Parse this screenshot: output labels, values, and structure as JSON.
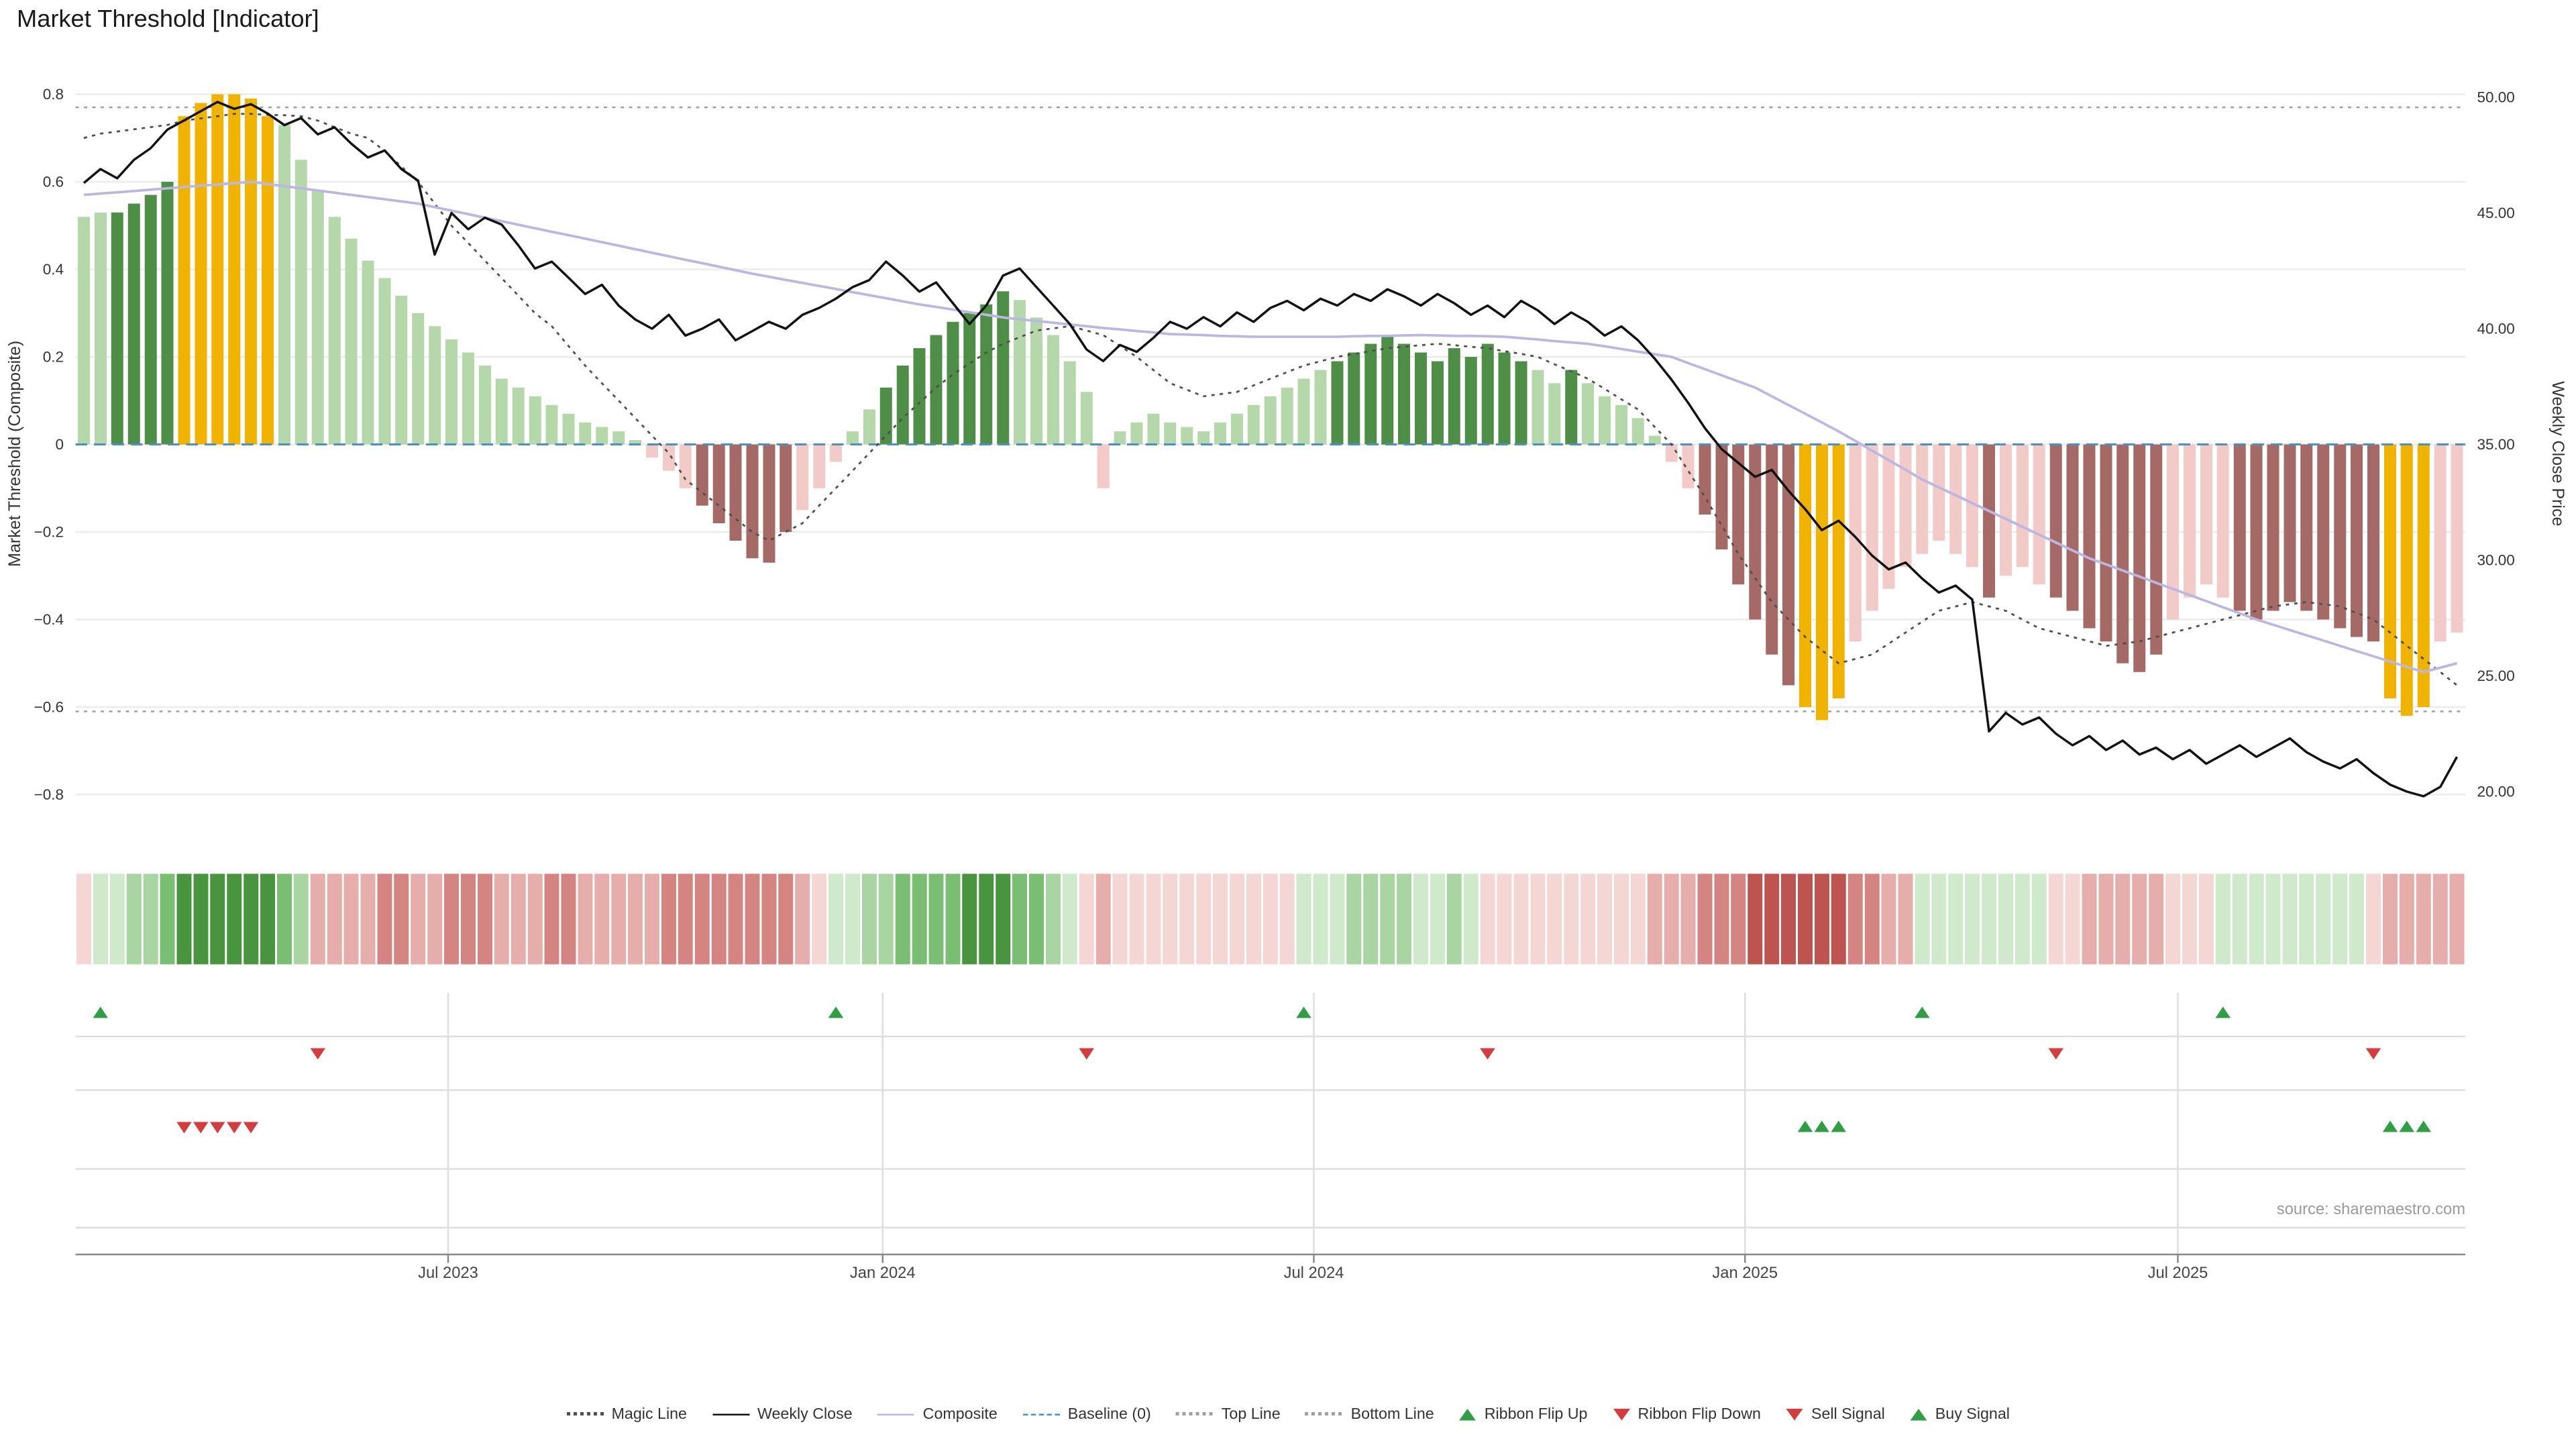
{
  "title": "Market Threshold [Indicator]",
  "source": "source: sharemaestro.com",
  "colors": {
    "bars": {
      "lg": "#b5d8ab",
      "dg": "#4e8e47",
      "gold": "#f0b400",
      "lp": "#f2cbc8",
      "mr": "#a66a66"
    },
    "ribbon": {
      "g1": "#cfe9cb",
      "g2": "#a8d5a1",
      "g3": "#7abe73",
      "g4": "#49953f",
      "r1": "#f4d7d5",
      "r2": "#e6aeab",
      "r3": "#d48481",
      "r4": "#bd5450"
    },
    "lines": {
      "magic": "#4f4f4f",
      "weekly_close": "#121212",
      "composite": "#bcb6e2",
      "baseline": "#4a90c4",
      "top_line": "#a0a0a0",
      "bottom_line": "#a0a0a0"
    },
    "signals": {
      "up": "#2f9e44",
      "down": "#d43d3d"
    },
    "grid": "#ebebeb",
    "divider": "#dedede",
    "axis": "#888888",
    "text": "#333333"
  },
  "legend": [
    {
      "label": "Magic Line",
      "marker": "dotted",
      "color": "#4f4f4f"
    },
    {
      "label": "Weekly Close",
      "marker": "solid",
      "color": "#121212"
    },
    {
      "label": "Composite",
      "marker": "solid",
      "color": "#bcb6e2"
    },
    {
      "label": "Baseline (0)",
      "marker": "dashed",
      "color": "#4a90c4"
    },
    {
      "label": "Top Line",
      "marker": "dotted",
      "color": "#a0a0a0"
    },
    {
      "label": "Bottom Line",
      "marker": "dotted",
      "color": "#a0a0a0"
    },
    {
      "label": "Ribbon Flip Up",
      "marker": "triangle-up",
      "color": "#2f9e44"
    },
    {
      "label": "Ribbon Flip Down",
      "marker": "triangle-down",
      "color": "#d43d3d"
    },
    {
      "label": "Sell Signal",
      "marker": "triangle-down",
      "color": "#d43d3d"
    },
    {
      "label": "Buy Signal",
      "marker": "triangle-up",
      "color": "#2f9e44"
    }
  ],
  "chart_data": {
    "type": "combo",
    "subtype": "weekly indicator bars with price overlay, ribbon strip and signal rows",
    "n_points": 143,
    "x_ticks": [
      {
        "label": "Jul 2023",
        "week_index": 21.8
      },
      {
        "label": "Jan 2024",
        "week_index": 47.8
      },
      {
        "label": "Jul 2024",
        "week_index": 73.6
      },
      {
        "label": "Jan 2025",
        "week_index": 99.4
      },
      {
        "label": "Jul 2025",
        "week_index": 125.3
      }
    ],
    "left_axis": {
      "label": "Market Threshold (Composite)",
      "tick_labels": [
        "0.8",
        "0.6",
        "0.4",
        "0.2",
        "0",
        "−0.2",
        "−0.4",
        "−0.6",
        "−0.8"
      ],
      "tick_values": [
        0.8,
        0.6,
        0.4,
        0.2,
        0,
        -0.2,
        -0.4,
        -0.6,
        -0.8
      ],
      "range": [
        -0.94,
        0.88
      ]
    },
    "right_axis": {
      "label": "Weekly Close Price",
      "tick_labels": [
        "50.00",
        "45.00",
        "40.00",
        "35.00",
        "30.00",
        "25.00",
        "20.00"
      ],
      "tick_values": [
        50,
        45,
        40,
        35,
        30,
        25,
        20
      ]
    },
    "reference_lines": {
      "baseline": 0,
      "top_line": 0.77,
      "bottom_line": -0.61
    },
    "series": {
      "threshold_bars": {
        "type": "bar",
        "axis": "left",
        "values": [
          0.52,
          0.53,
          0.53,
          0.55,
          0.57,
          0.6,
          0.75,
          0.78,
          0.8,
          0.8,
          0.79,
          0.75,
          0.73,
          0.65,
          0.58,
          0.52,
          0.47,
          0.42,
          0.38,
          0.34,
          0.3,
          0.27,
          0.24,
          0.21,
          0.18,
          0.15,
          0.13,
          0.11,
          0.09,
          0.07,
          0.05,
          0.04,
          0.03,
          0.01,
          -0.03,
          -0.06,
          -0.1,
          -0.14,
          -0.18,
          -0.22,
          -0.26,
          -0.27,
          -0.2,
          -0.15,
          -0.1,
          -0.04,
          0.03,
          0.08,
          0.13,
          0.18,
          0.22,
          0.25,
          0.28,
          0.3,
          0.32,
          0.35,
          0.33,
          0.29,
          0.25,
          0.19,
          0.12,
          -0.1,
          0.03,
          0.05,
          0.07,
          0.05,
          0.04,
          0.03,
          0.05,
          0.07,
          0.09,
          0.11,
          0.13,
          0.15,
          0.17,
          0.19,
          0.21,
          0.23,
          0.25,
          0.23,
          0.21,
          0.19,
          0.22,
          0.2,
          0.23,
          0.21,
          0.19,
          0.17,
          0.14,
          0.17,
          0.14,
          0.11,
          0.09,
          0.06,
          0.02,
          -0.04,
          -0.1,
          -0.16,
          -0.24,
          -0.32,
          -0.4,
          -0.48,
          -0.55,
          -0.6,
          -0.63,
          -0.58,
          -0.45,
          -0.38,
          -0.33,
          -0.28,
          -0.25,
          -0.22,
          -0.25,
          -0.28,
          -0.35,
          -0.3,
          -0.28,
          -0.32,
          -0.35,
          -0.38,
          -0.42,
          -0.45,
          -0.5,
          -0.52,
          -0.48,
          -0.4,
          -0.35,
          -0.32,
          -0.35,
          -0.38,
          -0.4,
          -0.38,
          -0.36,
          -0.38,
          -0.4,
          -0.42,
          -0.44,
          -0.45,
          -0.58,
          -0.62,
          -0.6,
          -0.45,
          -0.43
        ],
        "color_runs": [
          [
            "lg",
            2
          ],
          [
            "dg",
            4
          ],
          [
            "gold",
            6
          ],
          [
            "lg",
            22
          ],
          [
            "lp",
            3
          ],
          [
            "mr",
            6
          ],
          [
            "lp",
            3
          ],
          [
            "lg",
            2
          ],
          [
            "dg",
            8
          ],
          [
            "lg",
            5
          ],
          [
            "lp",
            1
          ],
          [
            "lg",
            13
          ],
          [
            "dg",
            12
          ],
          [
            "lg",
            2
          ],
          [
            "dg",
            1
          ],
          [
            "lg",
            5
          ],
          [
            "lp",
            2
          ],
          [
            "mr",
            6
          ],
          [
            "gold",
            3
          ],
          [
            "lp",
            8
          ],
          [
            "mr",
            1
          ],
          [
            "lp",
            3
          ],
          [
            "mr",
            7
          ],
          [
            "lp",
            4
          ],
          [
            "mr",
            9
          ],
          [
            "gold",
            3
          ],
          [
            "lp",
            2
          ]
        ]
      },
      "magic_line": {
        "type": "line",
        "style": "dotted",
        "axis": "left",
        "values": [
          0.7,
          0.71,
          0.715,
          0.72,
          0.725,
          0.73,
          0.74,
          0.745,
          0.75,
          0.755,
          0.755,
          0.753,
          0.752,
          0.75,
          0.74,
          0.725,
          0.71,
          0.7,
          0.67,
          0.635,
          0.6,
          0.55,
          0.5,
          0.46,
          0.42,
          0.38,
          0.34,
          0.3,
          0.27,
          0.225,
          0.18,
          0.14,
          0.1,
          0.06,
          0.02,
          -0.02,
          -0.08,
          -0.11,
          -0.14,
          -0.17,
          -0.2,
          -0.22,
          -0.2,
          -0.18,
          -0.14,
          -0.1,
          -0.06,
          -0.02,
          0.02,
          0.06,
          0.095,
          0.13,
          0.16,
          0.185,
          0.21,
          0.23,
          0.245,
          0.26,
          0.265,
          0.27,
          0.26,
          0.25,
          0.225,
          0.2,
          0.17,
          0.14,
          0.125,
          0.11,
          0.115,
          0.12,
          0.135,
          0.15,
          0.165,
          0.18,
          0.19,
          0.2,
          0.207,
          0.213,
          0.22,
          0.223,
          0.227,
          0.23,
          0.227,
          0.223,
          0.22,
          0.213,
          0.207,
          0.2,
          0.183,
          0.167,
          0.15,
          0.127,
          0.103,
          0.08,
          0.04,
          0.0,
          -0.06,
          -0.12,
          -0.185,
          -0.25,
          -0.305,
          -0.36,
          -0.4,
          -0.44,
          -0.47,
          -0.5,
          -0.49,
          -0.48,
          -0.455,
          -0.43,
          -0.405,
          -0.38,
          -0.37,
          -0.36,
          -0.37,
          -0.38,
          -0.4,
          -0.42,
          -0.43,
          -0.44,
          -0.45,
          -0.46,
          -0.455,
          -0.45,
          -0.44,
          -0.43,
          -0.42,
          -0.41,
          -0.4,
          -0.39,
          -0.38,
          -0.37,
          -0.365,
          -0.36,
          -0.365,
          -0.37,
          -0.385,
          -0.4,
          -0.43,
          -0.46,
          -0.49,
          -0.52,
          -0.55
        ]
      },
      "composite": {
        "type": "line",
        "axis": "left",
        "values": [
          0.57,
          0.573,
          0.576,
          0.579,
          0.582,
          0.585,
          0.588,
          0.591,
          0.594,
          0.597,
          0.6,
          0.595,
          0.59,
          0.585,
          0.58,
          0.575,
          0.57,
          0.565,
          0.56,
          0.555,
          0.55,
          0.542,
          0.534,
          0.526,
          0.518,
          0.51,
          0.502,
          0.494,
          0.486,
          0.478,
          0.47,
          0.462,
          0.454,
          0.446,
          0.438,
          0.43,
          0.422,
          0.414,
          0.406,
          0.398,
          0.39,
          0.383,
          0.376,
          0.369,
          0.362,
          0.355,
          0.348,
          0.341,
          0.334,
          0.327,
          0.32,
          0.314,
          0.308,
          0.302,
          0.296,
          0.29,
          0.286,
          0.282,
          0.278,
          0.274,
          0.27,
          0.266,
          0.263,
          0.259,
          0.256,
          0.252,
          0.251,
          0.25,
          0.248,
          0.247,
          0.246,
          0.246,
          0.246,
          0.246,
          0.246,
          0.246,
          0.247,
          0.248,
          0.248,
          0.249,
          0.25,
          0.249,
          0.248,
          0.248,
          0.247,
          0.246,
          0.243,
          0.24,
          0.236,
          0.233,
          0.23,
          0.224,
          0.218,
          0.212,
          0.206,
          0.2,
          0.186,
          0.172,
          0.158,
          0.144,
          0.13,
          0.11,
          0.09,
          0.07,
          0.05,
          0.03,
          0.008,
          -0.014,
          -0.036,
          -0.058,
          -0.08,
          -0.098,
          -0.116,
          -0.134,
          -0.152,
          -0.17,
          -0.188,
          -0.206,
          -0.224,
          -0.242,
          -0.26,
          -0.274,
          -0.288,
          -0.302,
          -0.316,
          -0.33,
          -0.344,
          -0.358,
          -0.372,
          -0.386,
          -0.4,
          -0.412,
          -0.424,
          -0.436,
          -0.448,
          -0.46,
          -0.472,
          -0.484,
          -0.496,
          -0.508,
          -0.52,
          -0.51,
          -0.5
        ]
      },
      "weekly_close": {
        "type": "line",
        "axis": "right",
        "values": [
          46.3,
          46.9,
          46.5,
          47.3,
          47.8,
          48.6,
          49.0,
          49.4,
          49.8,
          49.5,
          49.7,
          49.3,
          48.8,
          49.1,
          48.4,
          48.7,
          48.0,
          47.4,
          47.7,
          46.9,
          46.4,
          43.2,
          45.0,
          44.3,
          44.8,
          44.5,
          43.6,
          42.6,
          42.9,
          42.2,
          41.5,
          41.9,
          41.0,
          40.4,
          40.0,
          40.6,
          39.7,
          40.0,
          40.4,
          39.5,
          39.9,
          40.3,
          40.0,
          40.6,
          40.9,
          41.3,
          41.8,
          42.1,
          42.9,
          42.3,
          41.6,
          42.0,
          41.1,
          40.2,
          41.0,
          42.3,
          42.6,
          41.8,
          41.0,
          40.2,
          39.1,
          38.6,
          39.3,
          39.0,
          39.6,
          40.3,
          40.0,
          40.5,
          40.1,
          40.7,
          40.3,
          40.9,
          41.2,
          40.8,
          41.3,
          41.0,
          41.5,
          41.2,
          41.7,
          41.4,
          41.0,
          41.5,
          41.1,
          40.6,
          41.0,
          40.5,
          41.2,
          40.8,
          40.2,
          40.7,
          40.3,
          39.7,
          40.1,
          39.5,
          38.7,
          37.8,
          36.8,
          35.7,
          34.8,
          34.2,
          33.6,
          33.9,
          33.0,
          32.2,
          31.3,
          31.7,
          31.0,
          30.2,
          29.6,
          29.9,
          29.2,
          28.6,
          28.9,
          28.3,
          22.6,
          23.4,
          22.9,
          23.2,
          22.5,
          22.0,
          22.4,
          21.8,
          22.2,
          21.6,
          21.9,
          21.4,
          21.8,
          21.2,
          21.6,
          22.0,
          21.5,
          21.9,
          22.3,
          21.7,
          21.3,
          21.0,
          21.4,
          20.8,
          20.3,
          20.0,
          19.8,
          20.2,
          21.5
        ]
      }
    },
    "ribbon": {
      "color_runs": [
        [
          "r1",
          1
        ],
        [
          "g1",
          2
        ],
        [
          "g2",
          2
        ],
        [
          "g3",
          1
        ],
        [
          "g4",
          6
        ],
        [
          "g3",
          1
        ],
        [
          "g2",
          1
        ],
        [
          "r2",
          4
        ],
        [
          "r3",
          2
        ],
        [
          "r2",
          2
        ],
        [
          "r3",
          3
        ],
        [
          "r2",
          3
        ],
        [
          "r3",
          2
        ],
        [
          "r2",
          5
        ],
        [
          "r3",
          8
        ],
        [
          "r2",
          1
        ],
        [
          "r1",
          1
        ],
        [
          "g1",
          2
        ],
        [
          "g2",
          2
        ],
        [
          "g3",
          4
        ],
        [
          "g4",
          3
        ],
        [
          "g3",
          2
        ],
        [
          "g2",
          1
        ],
        [
          "g1",
          1
        ],
        [
          "r1",
          1
        ],
        [
          "r2",
          1
        ],
        [
          "r1",
          11
        ],
        [
          "g1",
          3
        ],
        [
          "g2",
          4
        ],
        [
          "g1",
          2
        ],
        [
          "g2",
          1
        ],
        [
          "g1",
          1
        ],
        [
          "r1",
          10
        ],
        [
          "r2",
          3
        ],
        [
          "r3",
          3
        ],
        [
          "r4",
          6
        ],
        [
          "r3",
          2
        ],
        [
          "r2",
          2
        ],
        [
          "g1",
          8
        ],
        [
          "r1",
          2
        ],
        [
          "r2",
          5
        ],
        [
          "r1",
          3
        ],
        [
          "g1",
          9
        ],
        [
          "r1",
          1
        ],
        [
          "r2",
          5
        ]
      ]
    },
    "signals": {
      "ribbon_flip_up_weeks": [
        1,
        45,
        73,
        110,
        128
      ],
      "ribbon_flip_down_weeks": [
        14,
        60,
        84,
        118,
        137
      ],
      "sell_signal_weeks": [
        6,
        7,
        8,
        9,
        10
      ],
      "buy_signal_weeks": [
        103,
        104,
        105,
        138,
        139,
        140
      ]
    }
  }
}
